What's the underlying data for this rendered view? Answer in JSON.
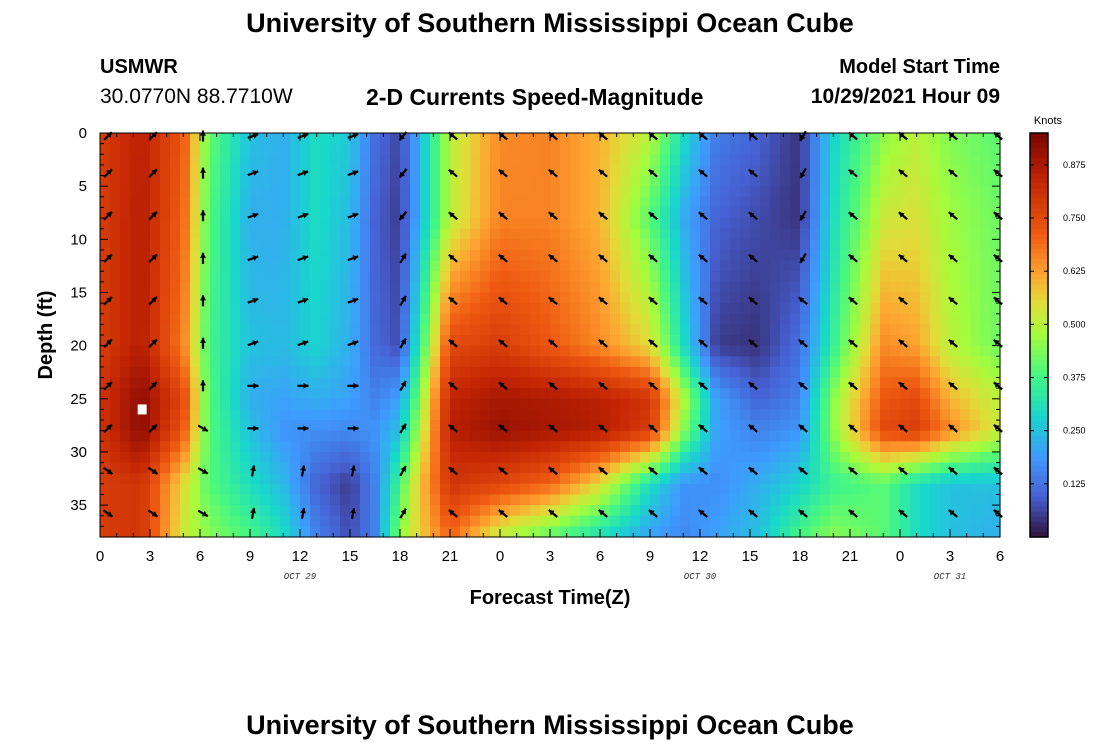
{
  "header": {
    "title": "University of Southern Mississippi Ocean Cube",
    "station": "USMWR",
    "coordinates": "30.0770N  88.7710W",
    "product": "2-D Currents Speed-Magnitude",
    "model_label": "Model Start Time",
    "model_time": "10/29/2021 Hour 09",
    "footer_title": "University of Southern Mississippi Ocean Cube"
  },
  "chart_data": {
    "type": "heatmap",
    "title": "2-D Currents Speed-Magnitude",
    "xlabel": "Forecast Time(Z)",
    "ylabel": "Depth (ft)",
    "x_hours": [
      0,
      54
    ],
    "y_depth_ft": [
      0,
      38
    ],
    "x_tick_labels": [
      "0",
      "3",
      "6",
      "9",
      "12",
      "15",
      "18",
      "21",
      "0",
      "3",
      "6",
      "9",
      "12",
      "15",
      "18",
      "21",
      "0",
      "3",
      "6"
    ],
    "date_labels": [
      {
        "text": "OCT 29",
        "hour": 12
      },
      {
        "text": "OCT 30",
        "hour": 36
      },
      {
        "text": "OCT 31",
        "hour": 51
      }
    ],
    "y_ticks": [
      0,
      5,
      10,
      15,
      20,
      25,
      30,
      35
    ],
    "colorbar": {
      "label": "Knots",
      "range": [
        0,
        0.95
      ],
      "ticks": [
        "0.875",
        "0.750",
        "0.625",
        "0.500",
        "0.375",
        "0.250",
        "0.125"
      ],
      "tick_values": [
        0.875,
        0.75,
        0.625,
        0.5,
        0.375,
        0.25,
        0.125
      ]
    },
    "speed_field": {
      "units": "knots",
      "hours": [
        0,
        2.5,
        5,
        6.5,
        9,
        11,
        13,
        15,
        16.5,
        18,
        19,
        21,
        24,
        27,
        30,
        33,
        35,
        37,
        39.5,
        42,
        44,
        47,
        49,
        51,
        54
      ],
      "depths_ft": [
        0,
        8,
        20,
        25,
        28,
        33,
        38
      ],
      "rows": [
        [
          0.78,
          0.85,
          0.72,
          0.42,
          0.25,
          0.22,
          0.3,
          0.26,
          0.12,
          0.06,
          0.2,
          0.5,
          0.65,
          0.66,
          0.6,
          0.5,
          0.3,
          0.14,
          0.1,
          0.04,
          0.28,
          0.45,
          0.5,
          0.44,
          0.4
        ],
        [
          0.78,
          0.86,
          0.7,
          0.4,
          0.22,
          0.22,
          0.3,
          0.24,
          0.1,
          0.05,
          0.2,
          0.5,
          0.66,
          0.66,
          0.6,
          0.4,
          0.22,
          0.1,
          0.07,
          0.04,
          0.3,
          0.52,
          0.54,
          0.47,
          0.42
        ],
        [
          0.78,
          0.86,
          0.66,
          0.38,
          0.25,
          0.24,
          0.28,
          0.22,
          0.11,
          0.07,
          0.3,
          0.75,
          0.78,
          0.72,
          0.65,
          0.55,
          0.3,
          0.05,
          0.04,
          0.12,
          0.35,
          0.65,
          0.62,
          0.5,
          0.42
        ],
        [
          0.8,
          0.92,
          0.75,
          0.4,
          0.22,
          0.2,
          0.22,
          0.2,
          0.15,
          0.2,
          0.4,
          0.84,
          0.88,
          0.87,
          0.85,
          0.8,
          0.5,
          0.2,
          0.1,
          0.15,
          0.45,
          0.72,
          0.75,
          0.6,
          0.5
        ],
        [
          0.8,
          0.92,
          0.72,
          0.4,
          0.25,
          0.18,
          0.17,
          0.16,
          0.18,
          0.25,
          0.45,
          0.85,
          0.9,
          0.88,
          0.86,
          0.78,
          0.45,
          0.2,
          0.15,
          0.18,
          0.45,
          0.75,
          0.78,
          0.65,
          0.52
        ],
        [
          0.78,
          0.8,
          0.55,
          0.4,
          0.3,
          0.24,
          0.1,
          0.05,
          0.15,
          0.38,
          0.55,
          0.8,
          0.76,
          0.7,
          0.55,
          0.3,
          0.18,
          0.17,
          0.22,
          0.28,
          0.36,
          0.4,
          0.3,
          0.25,
          0.25
        ],
        [
          0.78,
          0.8,
          0.52,
          0.45,
          0.38,
          0.3,
          0.15,
          0.07,
          0.15,
          0.45,
          0.55,
          0.7,
          0.5,
          0.4,
          0.3,
          0.2,
          0.16,
          0.2,
          0.25,
          0.38,
          0.45,
          0.4,
          0.3,
          0.25,
          0.22
        ]
      ]
    },
    "marker": {
      "hour": 2.5,
      "depth_ft": 26
    },
    "vector_depths_ft": [
      0,
      3.5,
      7.5,
      11.5,
      15.5,
      19.5,
      23.5,
      27.5,
      31.5,
      35.5
    ],
    "vector_hours_step": 3
  }
}
